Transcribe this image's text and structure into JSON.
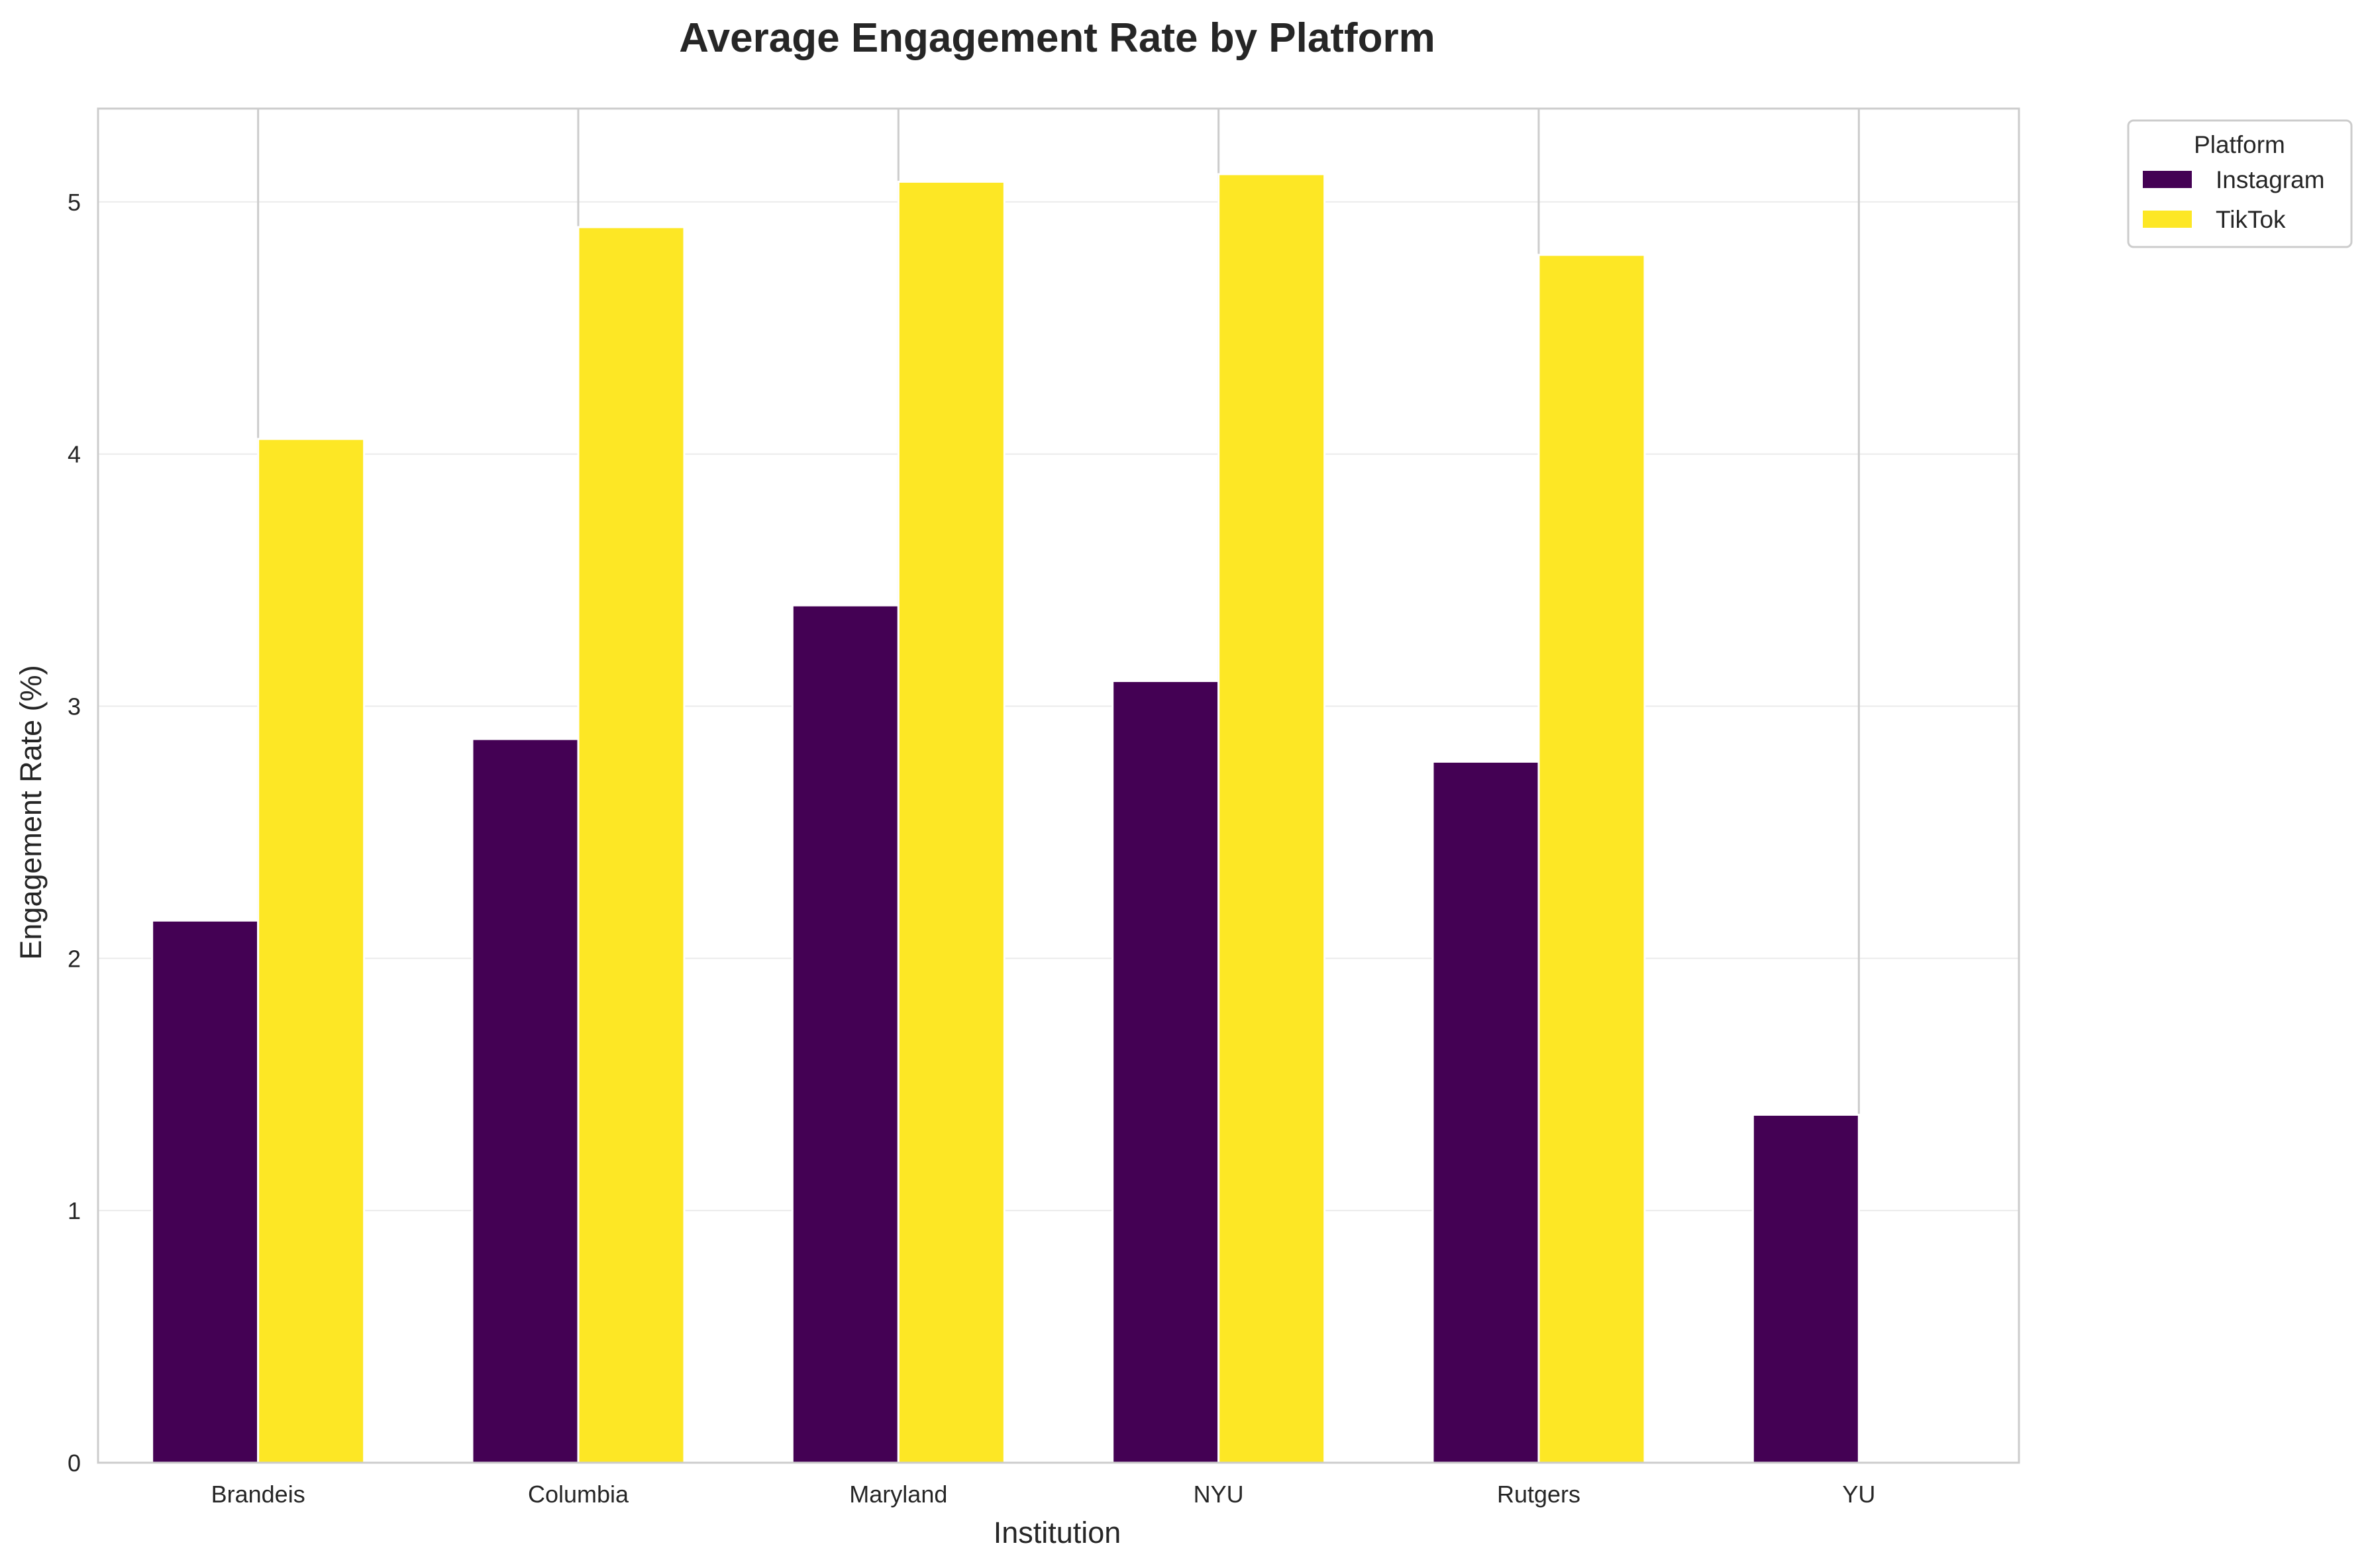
{
  "chart_data": {
    "type": "bar",
    "title": "Average Engagement Rate by Platform",
    "xlabel": "Institution",
    "ylabel": "Engagement Rate (%)",
    "categories": [
      "Brandeis",
      "Columbia",
      "Maryland",
      "NYU",
      "Rutgers",
      "YU"
    ],
    "series": [
      {
        "name": "Instagram",
        "color": "#440154",
        "values": [
          2.15,
          2.87,
          3.4,
          3.1,
          2.78,
          1.38
        ]
      },
      {
        "name": "TikTok",
        "color": "#fde725",
        "values": [
          4.06,
          4.9,
          5.08,
          5.11,
          4.79,
          null
        ]
      }
    ],
    "ylim": [
      0,
      5.37
    ],
    "yticks": [
      0,
      1,
      2,
      3,
      4,
      5
    ],
    "grid": true,
    "legend": {
      "title": "Platform",
      "placement": "outside-top-right"
    }
  }
}
